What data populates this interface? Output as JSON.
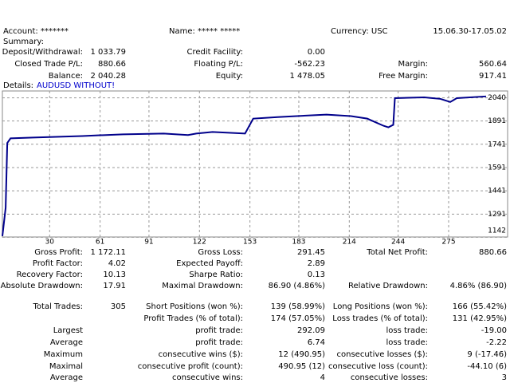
{
  "header": {
    "account": "Account: *******",
    "name": "Name: ***** *****",
    "currency": "Currency: USC",
    "period": "15.06.30-17.05.02",
    "summary": "Summary:",
    "details": "Details:",
    "symbol": "AUDUSD WITHOUT!"
  },
  "summary": [
    [
      [
        "Deposit/Withdrawal:",
        "1 033.79"
      ],
      [
        "Credit Facility:",
        "0.00"
      ],
      null
    ],
    [
      [
        "Closed Trade P/L:",
        "880.66"
      ],
      [
        "Floating P/L:",
        "-562.23"
      ],
      [
        "Margin:",
        "560.64"
      ]
    ],
    [
      [
        "Balance:",
        "2 040.28"
      ],
      [
        "Equity:",
        "1 478.05"
      ],
      [
        "Free Margin:",
        "917.41"
      ]
    ]
  ],
  "chart_data": {
    "type": "line",
    "color": "#00008b",
    "x": [
      1,
      3,
      4,
      6,
      20,
      50,
      75,
      100,
      115,
      120,
      130,
      150,
      155,
      170,
      200,
      215,
      225,
      235,
      238,
      241,
      242,
      260,
      270,
      276,
      280,
      298
    ],
    "values": [
      1150,
      1332,
      1749,
      1779,
      1784,
      1794,
      1805,
      1810,
      1800,
      1810,
      1820,
      1810,
      1906,
      1916,
      1932,
      1922,
      1906,
      1860,
      1850,
      1866,
      2038,
      2043,
      2033,
      2013,
      2038,
      2049
    ],
    "xlim": [
      1,
      298
    ],
    "ylim": [
      1144,
      2084
    ],
    "xticks": [
      30,
      61,
      91,
      122,
      153,
      183,
      214,
      244,
      275
    ],
    "yticks": [
      1142,
      1291,
      1441,
      1591,
      1741,
      1891,
      2040
    ],
    "grid": true
  },
  "stats": [
    [
      [
        "Gross Profit:",
        "1 172.11"
      ],
      [
        "Gross Loss:",
        "291.45"
      ],
      [
        "Total Net Profit:",
        "880.66"
      ]
    ],
    [
      [
        "Profit Factor:",
        "4.02"
      ],
      [
        "Expected Payoff:",
        "2.89"
      ],
      null
    ],
    [
      [
        "Recovery Factor:",
        "10.13"
      ],
      [
        "Sharpe Ratio:",
        "0.13"
      ],
      null
    ],
    [
      [
        "Absolute Drawdown:",
        "17.91"
      ],
      [
        "Maximal Drawdown:",
        "86.90 (4.86%)"
      ],
      [
        "Relative Drawdown:",
        "4.86% (86.90)"
      ]
    ],
    [
      [
        "Total Trades:",
        "305"
      ],
      [
        "Short Positions (won %):",
        "139 (58.99%)"
      ],
      [
        "Long Positions (won %):",
        "166 (55.42%)"
      ]
    ],
    [
      null,
      [
        "Profit Trades (% of total):",
        "174 (57.05%)"
      ],
      [
        "Loss trades (% of total):",
        "131 (42.95%)"
      ]
    ],
    [
      [
        "Largest"
      ],
      [
        "profit trade:",
        "292.09"
      ],
      [
        "loss trade:",
        "-19.00"
      ]
    ],
    [
      [
        "Average"
      ],
      [
        "profit trade:",
        "6.74"
      ],
      [
        "loss trade:",
        "-2.22"
      ]
    ],
    [
      [
        "Maximum"
      ],
      [
        "consecutive wins ($):",
        "12 (490.95)"
      ],
      [
        "consecutive losses ($):",
        "9 (-17.46)"
      ]
    ],
    [
      [
        "Maximal"
      ],
      [
        "consecutive profit (count):",
        "490.95 (12)"
      ],
      [
        "consecutive loss (count):",
        "-44.10 (6)"
      ]
    ],
    [
      [
        "Average"
      ],
      [
        "consecutive wins:",
        "4"
      ],
      [
        "consecutive losses:",
        "3"
      ]
    ]
  ]
}
